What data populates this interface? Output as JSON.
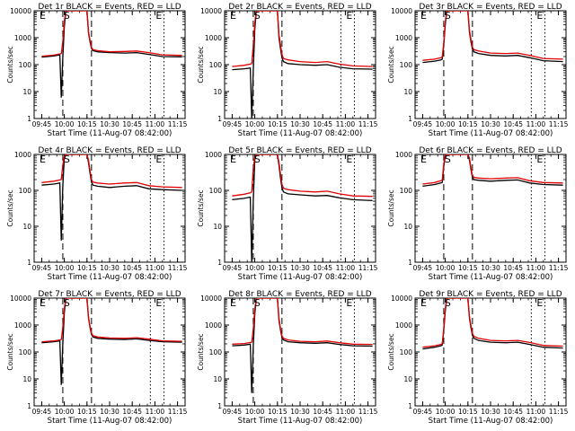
{
  "figure": {
    "xlabel": "Start Time (11-Aug-07 08:42:00)",
    "ylabel": "Counts/sec",
    "colors": {
      "events": "#000000",
      "lld": "#e00000",
      "axes": "#000000"
    }
  },
  "chart_data": [
    {
      "type": "line",
      "title": "Det 1r BLACK = Events, RED = LLD",
      "xlabel": "Start Time (11-Aug-07 08:42:00)",
      "ylabel": "Counts/sec",
      "x_ticks": [
        "09:45",
        "10:00",
        "10:15",
        "10:30",
        "10:45",
        "11:00",
        "11:15"
      ],
      "y_ticks": [
        "1",
        "10",
        "100",
        "1000",
        "10000"
      ],
      "y_scale": "log",
      "ylim": [
        1,
        10000
      ],
      "markers": [
        {
          "label": "E",
          "time": "09:43"
        },
        {
          "label": "S",
          "time": "09:59"
        },
        {
          "label": "E",
          "time": "11:00"
        }
      ],
      "dashed_lines": [
        "09:59",
        "10:18"
      ],
      "dotted_lines": [
        "10:57",
        "11:06"
      ],
      "x": [
        "09:45",
        "09:53",
        "09:57",
        "09:58",
        "09:59",
        "10:00",
        "10:01",
        "10:15",
        "10:16",
        "10:17",
        "10:18",
        "10:19",
        "10:22",
        "10:30",
        "10:40",
        "10:48",
        "10:56",
        "11:05",
        "11:18"
      ],
      "series": [
        {
          "name": "BLACK = Events",
          "values": [
            190,
            210,
            230,
            6,
            180,
            2500,
            10000,
            10000,
            1500,
            700,
            400,
            330,
            300,
            280,
            270,
            280,
            240,
            200,
            195
          ]
        },
        {
          "name": "RED = LLD",
          "values": [
            205,
            225,
            250,
            260,
            700,
            4000,
            10000,
            10000,
            1700,
            800,
            440,
            360,
            330,
            300,
            310,
            320,
            280,
            230,
            220
          ]
        }
      ]
    },
    {
      "type": "line",
      "title": "Det 2r BLACK = Events, RED = LLD",
      "xlabel": "Start Time (11-Aug-07 08:42:00)",
      "ylabel": "Counts/sec",
      "x_ticks": [
        "09:45",
        "10:00",
        "10:15",
        "10:30",
        "10:45",
        "11:00",
        "11:15"
      ],
      "y_ticks": [
        "1",
        "10",
        "100",
        "1000",
        "10000"
      ],
      "y_scale": "log",
      "ylim": [
        1,
        10000
      ],
      "markers": [
        {
          "label": "E",
          "time": "09:43"
        },
        {
          "label": "S",
          "time": "09:59"
        },
        {
          "label": "E",
          "time": "11:00"
        }
      ],
      "dashed_lines": [
        "09:59",
        "10:18"
      ],
      "dotted_lines": [
        "10:57",
        "11:06"
      ],
      "x": [
        "09:45",
        "09:53",
        "09:57",
        "09:58",
        "09:59",
        "10:00",
        "10:01",
        "10:15",
        "10:16",
        "10:17",
        "10:18",
        "10:19",
        "10:22",
        "10:30",
        "10:40",
        "10:48",
        "10:56",
        "11:05",
        "11:18"
      ],
      "series": [
        {
          "name": "BLACK = Events",
          "values": [
            65,
            70,
            75,
            1,
            60,
            2000,
            10000,
            10000,
            1000,
            400,
            180,
            130,
            110,
            100,
            95,
            100,
            80,
            70,
            68
          ]
        },
        {
          "name": "RED = LLD",
          "values": [
            85,
            95,
            105,
            110,
            500,
            3500,
            10000,
            10000,
            1300,
            550,
            240,
            170,
            150,
            130,
            120,
            130,
            105,
            90,
            85
          ]
        }
      ]
    },
    {
      "type": "line",
      "title": "Det 3r BLACK = Events, RED = LLD",
      "xlabel": "Start Time (11-Aug-07 08:42:00)",
      "ylabel": "Counts/sec",
      "x_ticks": [
        "09:45",
        "10:00",
        "10:15",
        "10:30",
        "10:45",
        "11:00",
        "11:15"
      ],
      "y_ticks": [
        "1",
        "10",
        "100",
        "1000",
        "10000"
      ],
      "y_scale": "log",
      "ylim": [
        1,
        10000
      ],
      "markers": [
        {
          "label": "E",
          "time": "09:43"
        },
        {
          "label": "S",
          "time": "09:59"
        },
        {
          "label": "E",
          "time": "11:00"
        }
      ],
      "dashed_lines": [
        "09:59",
        "10:18"
      ],
      "dotted_lines": [
        "10:57",
        "11:06"
      ],
      "x": [
        "09:45",
        "09:53",
        "09:57",
        "09:58",
        "09:59",
        "10:00",
        "10:01",
        "10:15",
        "10:16",
        "10:17",
        "10:18",
        "10:19",
        "10:22",
        "10:30",
        "10:40",
        "10:48",
        "10:56",
        "11:05",
        "11:18"
      ],
      "series": [
        {
          "name": "BLACK = Events",
          "values": [
            120,
            135,
            150,
            160,
            500,
            3000,
            10000,
            10000,
            1600,
            700,
            380,
            300,
            260,
            220,
            210,
            220,
            180,
            140,
            130
          ]
        },
        {
          "name": "RED = LLD",
          "values": [
            145,
            160,
            180,
            190,
            650,
            3800,
            10000,
            10000,
            1900,
            850,
            450,
            360,
            320,
            270,
            260,
            270,
            220,
            170,
            160
          ]
        }
      ]
    },
    {
      "type": "line",
      "title": "Det 4r BLACK = Events, RED = LLD",
      "xlabel": "Start Time (11-Aug-07 08:42:00)",
      "ylabel": "Counts/sec",
      "x_ticks": [
        "09:45",
        "10:00",
        "10:15",
        "10:30",
        "10:45",
        "11:00",
        "11:15"
      ],
      "y_ticks": [
        "1",
        "10",
        "100",
        "1000"
      ],
      "y_scale": "log",
      "ylim": [
        1,
        1000
      ],
      "markers": [
        {
          "label": "E",
          "time": "09:43"
        },
        {
          "label": "S",
          "time": "09:59"
        },
        {
          "label": "E",
          "time": "11:00"
        }
      ],
      "dashed_lines": [
        "09:59",
        "10:18"
      ],
      "dotted_lines": [
        "10:57",
        "11:06"
      ],
      "x": [
        "09:45",
        "09:53",
        "09:57",
        "09:58",
        "09:59",
        "10:00",
        "10:01",
        "10:15",
        "10:16",
        "10:17",
        "10:18",
        "10:19",
        "10:22",
        "10:30",
        "10:40",
        "10:48",
        "10:56",
        "11:05",
        "11:18"
      ],
      "series": [
        {
          "name": "BLACK = Events",
          "values": [
            140,
            150,
            160,
            4,
            130,
            800,
            1000,
            1000,
            600,
            300,
            170,
            140,
            130,
            120,
            130,
            135,
            110,
            105,
            100
          ]
        },
        {
          "name": "RED = LLD",
          "values": [
            165,
            180,
            195,
            200,
            500,
            900,
            1000,
            1000,
            700,
            350,
            200,
            170,
            160,
            150,
            160,
            165,
            135,
            125,
            120
          ]
        }
      ]
    },
    {
      "type": "line",
      "title": "Det 5r BLACK = Events, RED = LLD",
      "xlabel": "Start Time (11-Aug-07 08:42:00)",
      "ylabel": "Counts/sec",
      "x_ticks": [
        "09:45",
        "10:00",
        "10:15",
        "10:30",
        "10:45",
        "11:00",
        "11:15"
      ],
      "y_ticks": [
        "1",
        "10",
        "100",
        "1000"
      ],
      "y_scale": "log",
      "ylim": [
        1,
        1000
      ],
      "markers": [
        {
          "label": "E",
          "time": "09:43"
        },
        {
          "label": "S",
          "time": "09:59"
        },
        {
          "label": "E",
          "time": "11:00"
        }
      ],
      "dashed_lines": [
        "09:59",
        "10:18"
      ],
      "dotted_lines": [
        "10:57",
        "11:06"
      ],
      "x": [
        "09:45",
        "09:53",
        "09:57",
        "09:58",
        "09:59",
        "10:00",
        "10:01",
        "10:15",
        "10:16",
        "10:17",
        "10:18",
        "10:19",
        "10:22",
        "10:30",
        "10:40",
        "10:48",
        "10:56",
        "11:05",
        "11:18"
      ],
      "series": [
        {
          "name": "BLACK = Events",
          "values": [
            55,
            60,
            65,
            1,
            50,
            700,
            1000,
            1000,
            500,
            220,
            120,
            90,
            80,
            75,
            70,
            72,
            62,
            55,
            52
          ]
        },
        {
          "name": "RED = LLD",
          "values": [
            70,
            78,
            85,
            90,
            400,
            850,
            1000,
            1000,
            600,
            280,
            150,
            115,
            105,
            95,
            90,
            95,
            80,
            70,
            68
          ]
        }
      ]
    },
    {
      "type": "line",
      "title": "Det 6r BLACK = Events, RED = LLD",
      "xlabel": "Start Time (11-Aug-07 08:42:00)",
      "ylabel": "Counts/sec",
      "x_ticks": [
        "09:45",
        "10:00",
        "10:15",
        "10:30",
        "10:45",
        "11:00",
        "11:15"
      ],
      "y_ticks": [
        "1",
        "10",
        "100",
        "1000"
      ],
      "y_scale": "log",
      "ylim": [
        1,
        1000
      ],
      "markers": [
        {
          "label": "E",
          "time": "09:43"
        },
        {
          "label": "S",
          "time": "09:59"
        },
        {
          "label": "E",
          "time": "11:00"
        }
      ],
      "dashed_lines": [
        "09:59",
        "10:18"
      ],
      "dotted_lines": [
        "10:57",
        "11:06"
      ],
      "x": [
        "09:45",
        "09:53",
        "09:57",
        "09:58",
        "09:59",
        "10:00",
        "10:01",
        "10:15",
        "10:16",
        "10:17",
        "10:18",
        "10:19",
        "10:22",
        "10:30",
        "10:40",
        "10:48",
        "10:56",
        "11:05",
        "11:18"
      ],
      "series": [
        {
          "name": "BLACK = Events",
          "values": [
            130,
            145,
            160,
            165,
            450,
            900,
            1000,
            1000,
            700,
            380,
            230,
            200,
            190,
            180,
            190,
            195,
            160,
            145,
            140
          ]
        },
        {
          "name": "RED = LLD",
          "values": [
            150,
            165,
            185,
            190,
            550,
            950,
            1000,
            1000,
            800,
            430,
            260,
            230,
            220,
            210,
            220,
            225,
            185,
            165,
            160
          ]
        }
      ]
    },
    {
      "type": "line",
      "title": "Det 7r BLACK = Events, RED = LLD",
      "xlabel": "Start Time (11-Aug-07 08:42:00)",
      "ylabel": "Counts/sec",
      "x_ticks": [
        "09:45",
        "10:00",
        "10:15",
        "10:30",
        "10:45",
        "11:00",
        "11:15"
      ],
      "y_ticks": [
        "1",
        "10",
        "100",
        "1000",
        "10000"
      ],
      "y_scale": "log",
      "ylim": [
        1,
        10000
      ],
      "markers": [
        {
          "label": "E",
          "time": "09:43"
        },
        {
          "label": "S",
          "time": "09:59"
        },
        {
          "label": "E",
          "time": "11:00"
        }
      ],
      "dashed_lines": [
        "09:59",
        "10:18"
      ],
      "dotted_lines": [
        "10:57",
        "11:06"
      ],
      "x": [
        "09:45",
        "09:53",
        "09:57",
        "09:58",
        "09:59",
        "10:00",
        "10:01",
        "10:15",
        "10:16",
        "10:17",
        "10:18",
        "10:19",
        "10:22",
        "10:30",
        "10:40",
        "10:48",
        "10:56",
        "11:05",
        "11:18"
      ],
      "series": [
        {
          "name": "BLACK = Events",
          "values": [
            220,
            240,
            260,
            6,
            200,
            2800,
            10000,
            10000,
            1800,
            800,
            450,
            360,
            320,
            300,
            290,
            310,
            270,
            240,
            230
          ]
        },
        {
          "name": "RED = LLD",
          "values": [
            240,
            260,
            280,
            290,
            800,
            4000,
            10000,
            10000,
            2000,
            900,
            500,
            400,
            360,
            330,
            320,
            340,
            300,
            260,
            250
          ]
        }
      ]
    },
    {
      "type": "line",
      "title": "Det 8r BLACK = Events, RED = LLD",
      "xlabel": "Start Time (11-Aug-07 08:42:00)",
      "ylabel": "Counts/sec",
      "x_ticks": [
        "09:45",
        "10:00",
        "10:15",
        "10:30",
        "10:45",
        "11:00",
        "11:15"
      ],
      "y_ticks": [
        "1",
        "10",
        "100",
        "1000",
        "10000"
      ],
      "y_scale": "log",
      "ylim": [
        1,
        10000
      ],
      "markers": [
        {
          "label": "E",
          "time": "09:43"
        },
        {
          "label": "S",
          "time": "09:59"
        },
        {
          "label": "E",
          "time": "11:00"
        }
      ],
      "dashed_lines": [
        "09:59",
        "10:18"
      ],
      "dotted_lines": [
        "10:57",
        "11:06"
      ],
      "x": [
        "09:45",
        "09:53",
        "09:57",
        "09:58",
        "09:59",
        "10:00",
        "10:01",
        "10:15",
        "10:16",
        "10:17",
        "10:18",
        "10:19",
        "10:22",
        "10:30",
        "10:40",
        "10:48",
        "10:56",
        "11:05",
        "11:18"
      ],
      "series": [
        {
          "name": "BLACK = Events",
          "values": [
            170,
            180,
            195,
            3,
            160,
            2500,
            10000,
            10000,
            1500,
            650,
            350,
            280,
            240,
            220,
            210,
            220,
            190,
            170,
            165
          ]
        },
        {
          "name": "RED = LLD",
          "values": [
            195,
            205,
            225,
            230,
            700,
            3800,
            10000,
            10000,
            1800,
            750,
            400,
            320,
            280,
            250,
            240,
            255,
            220,
            195,
            190
          ]
        }
      ]
    },
    {
      "type": "line",
      "title": "Det 9r BLACK = Events, RED = LLD",
      "xlabel": "Start Time (11-Aug-07 08:42:00)",
      "ylabel": "Counts/sec",
      "x_ticks": [
        "09:45",
        "10:00",
        "10:15",
        "10:30",
        "10:45",
        "11:00",
        "11:15"
      ],
      "y_ticks": [
        "1",
        "10",
        "100",
        "1000",
        "10000"
      ],
      "y_scale": "log",
      "ylim": [
        1,
        10000
      ],
      "markers": [
        {
          "label": "E",
          "time": "09:43"
        },
        {
          "label": "S",
          "time": "09:59"
        },
        {
          "label": "E",
          "time": "11:00"
        }
      ],
      "dashed_lines": [
        "09:59",
        "10:18"
      ],
      "dotted_lines": [
        "10:57",
        "11:06"
      ],
      "x": [
        "09:45",
        "09:53",
        "09:57",
        "09:58",
        "09:59",
        "10:00",
        "10:01",
        "10:15",
        "10:16",
        "10:17",
        "10:18",
        "10:19",
        "10:22",
        "10:30",
        "10:40",
        "10:48",
        "10:56",
        "11:05",
        "11:18"
      ],
      "series": [
        {
          "name": "BLACK = Events",
          "values": [
            130,
            150,
            170,
            180,
            600,
            3200,
            10000,
            10000,
            1800,
            800,
            420,
            320,
            270,
            230,
            220,
            230,
            190,
            150,
            140
          ]
        },
        {
          "name": "RED = LLD",
          "values": [
            150,
            170,
            190,
            200,
            750,
            4000,
            10000,
            10000,
            2100,
            950,
            490,
            380,
            320,
            270,
            260,
            270,
            225,
            175,
            165
          ]
        }
      ]
    }
  ]
}
